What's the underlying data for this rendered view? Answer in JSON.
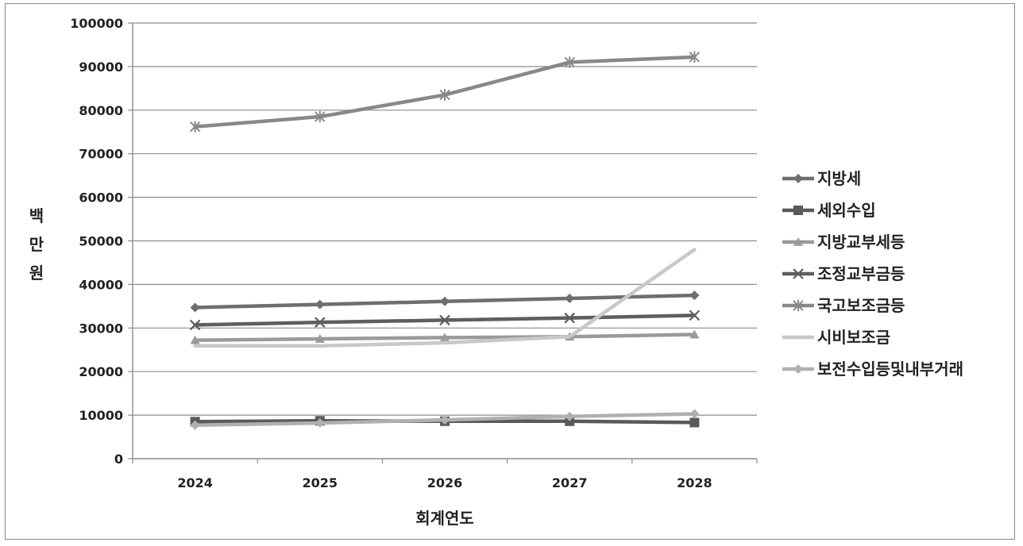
{
  "chart_data": {
    "type": "line",
    "x": [
      "2024",
      "2025",
      "2026",
      "2027",
      "2028"
    ],
    "xlabel": "회계연도",
    "ylabel": "백만원",
    "ylabel_chars": [
      "백",
      "만",
      "원"
    ],
    "ylim": [
      0,
      100000
    ],
    "yticks": [
      0,
      10000,
      20000,
      30000,
      40000,
      50000,
      60000,
      70000,
      80000,
      90000,
      100000
    ],
    "grid": "horizontal",
    "legend_position": "right",
    "series": [
      {
        "name": "지방세",
        "marker": "diamond",
        "color": "#6e6e6e",
        "values": [
          34700,
          35400,
          36100,
          36800,
          37500
        ]
      },
      {
        "name": "세외수입",
        "marker": "square",
        "color": "#5a5a5a",
        "values": [
          8500,
          8700,
          8600,
          8600,
          8300
        ]
      },
      {
        "name": "지방교부세등",
        "marker": "triangle",
        "color": "#9a9a9a",
        "values": [
          27200,
          27500,
          27800,
          28000,
          28500
        ]
      },
      {
        "name": "조정교부금등",
        "marker": "x",
        "color": "#5e5e5e",
        "values": [
          30700,
          31300,
          31800,
          32300,
          32900
        ]
      },
      {
        "name": "국고보조금등",
        "marker": "star",
        "color": "#888888",
        "values": [
          76200,
          78500,
          83500,
          91000,
          92200
        ]
      },
      {
        "name": "시비보조금",
        "marker": "none",
        "color": "#c8c8c8",
        "values": [
          25900,
          25900,
          26600,
          28000,
          48000
        ]
      },
      {
        "name": "보전수입등및내부거래",
        "marker": "diamond",
        "color": "#b0b0b0",
        "values": [
          7700,
          8200,
          8900,
          9700,
          10300
        ]
      }
    ]
  }
}
